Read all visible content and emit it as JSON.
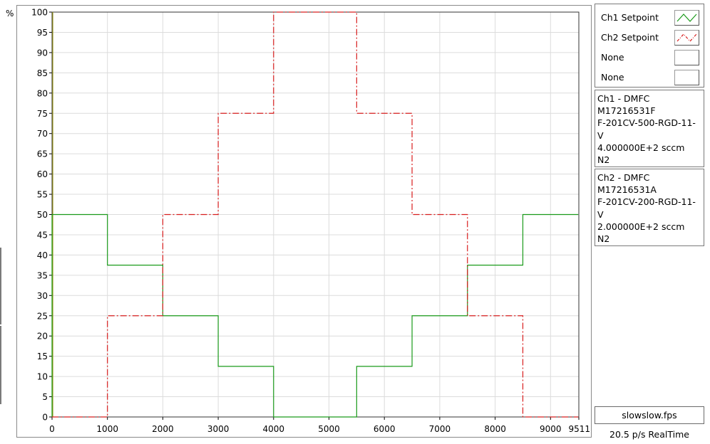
{
  "chart_data": {
    "type": "line",
    "ylabel": "%",
    "x_ticks": [
      "0",
      "1000",
      "2000",
      "3000",
      "4000",
      "5000",
      "6000",
      "7000",
      "8000",
      "9000",
      "9511"
    ],
    "x_tick_values": [
      0,
      1000,
      2000,
      3000,
      4000,
      5000,
      6000,
      7000,
      8000,
      9000,
      9511
    ],
    "y_ticks": [
      "0",
      "5",
      "10",
      "15",
      "20",
      "25",
      "30",
      "35",
      "40",
      "45",
      "50",
      "55",
      "60",
      "65",
      "70",
      "75",
      "80",
      "85",
      "90",
      "95",
      "100"
    ],
    "xlim": [
      0,
      9511
    ],
    "ylim": [
      0,
      100
    ],
    "grid": true,
    "series": [
      {
        "name": "Ch1 Setpoint",
        "color": "#1a9a1a",
        "style": "step",
        "x": [
          0,
          1000,
          2000,
          3000,
          4000,
          5500,
          6500,
          7500,
          8500,
          9500
        ],
        "y": [
          50,
          37.5,
          25,
          12.5,
          0,
          12.5,
          25,
          37.5,
          50,
          50
        ]
      },
      {
        "name": "Ch2 Setpoint",
        "color": "#d81e1e",
        "style": "step-dashdot",
        "x": [
          0,
          1000,
          2000,
          3000,
          4000,
          5500,
          6500,
          7500,
          8500,
          9500
        ],
        "y": [
          0,
          25,
          50,
          75,
          100,
          75,
          50,
          25,
          0,
          0
        ]
      }
    ]
  },
  "legend": {
    "items": [
      {
        "label": "Ch1 Setpoint",
        "color": "#1a9a1a",
        "style": "solid"
      },
      {
        "label": "Ch2 Setpoint",
        "color": "#d81e1e",
        "style": "dashdot"
      },
      {
        "label": "None",
        "color": "",
        "style": "none"
      },
      {
        "label": "None",
        "color": "",
        "style": "none"
      }
    ]
  },
  "channels": [
    {
      "lines": [
        "Ch1 - DMFC",
        "M17216531F",
        "F-201CV-500-RGD-11-",
        "V",
        "4.000000E+2 sccm",
        "N2"
      ]
    },
    {
      "lines": [
        "Ch2 - DMFC",
        "M17216531A",
        "F-201CV-200-RGD-11-",
        "V",
        "2.000000E+2 sccm",
        "N2"
      ]
    }
  ],
  "file": {
    "name": "slowslow.fps"
  },
  "status": {
    "rate": "20.5 p/s RealTime"
  }
}
